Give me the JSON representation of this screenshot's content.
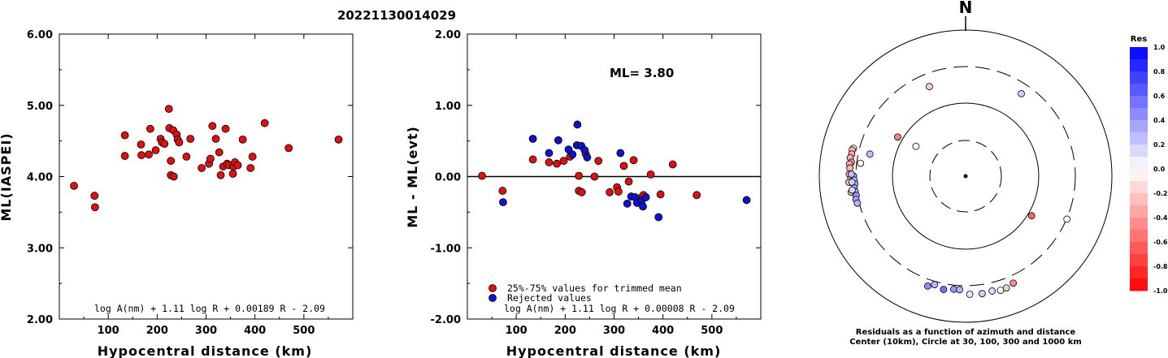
{
  "title": "20221130014029",
  "chart_data": [
    {
      "type": "scatter",
      "xlabel": "Hypocentral distance (km)",
      "ylabel": "ML(IASPEI)",
      "xlim": [
        0,
        600
      ],
      "ylim": [
        2.0,
        6.0
      ],
      "xticks": [
        "100",
        "200",
        "300",
        "400",
        "500"
      ],
      "yticks": [
        "2.00",
        "3.00",
        "4.00",
        "5.00",
        "6.00"
      ],
      "formula": "log A(nm) + 1.11 log R + 0.00189 R - 2.09",
      "point_color": "#dd1111",
      "points": [
        [
          30,
          3.87
        ],
        [
          72,
          3.73
        ],
        [
          73,
          3.57
        ],
        [
          134,
          4.58
        ],
        [
          134,
          4.29
        ],
        [
          167,
          4.45
        ],
        [
          168,
          4.3
        ],
        [
          183,
          4.31
        ],
        [
          186,
          4.67
        ],
        [
          197,
          4.37
        ],
        [
          207,
          4.53
        ],
        [
          210,
          4.48
        ],
        [
          215,
          4.46
        ],
        [
          224,
          4.95
        ],
        [
          225,
          4.68
        ],
        [
          228,
          4.22
        ],
        [
          228,
          4.02
        ],
        [
          233,
          4.65
        ],
        [
          234,
          4.0
        ],
        [
          240,
          4.59
        ],
        [
          242,
          4.52
        ],
        [
          245,
          4.48
        ],
        [
          260,
          4.28
        ],
        [
          268,
          4.53
        ],
        [
          291,
          4.12
        ],
        [
          306,
          4.18
        ],
        [
          309,
          4.25
        ],
        [
          313,
          4.71
        ],
        [
          320,
          4.53
        ],
        [
          327,
          4.34
        ],
        [
          330,
          4.02
        ],
        [
          335,
          4.14
        ],
        [
          340,
          4.67
        ],
        [
          343,
          4.18
        ],
        [
          347,
          4.16
        ],
        [
          355,
          4.04
        ],
        [
          356,
          4.14
        ],
        [
          359,
          4.2
        ],
        [
          365,
          4.16
        ],
        [
          375,
          4.52
        ],
        [
          391,
          4.12
        ],
        [
          395,
          4.28
        ],
        [
          420,
          4.75
        ],
        [
          469,
          4.4
        ],
        [
          571,
          4.52
        ]
      ]
    },
    {
      "type": "scatter",
      "xlabel": "Hypocentral distance (km)",
      "ylabel": "ML - ML(evt)",
      "xlim": [
        0,
        600
      ],
      "ylim": [
        -2.0,
        2.0
      ],
      "xticks": [
        "100",
        "200",
        "300",
        "400",
        "500"
      ],
      "yticks": [
        "-2.00",
        "-1.00",
        "0.00",
        "1.00",
        "2.00"
      ],
      "annotation": "ML= 3.80",
      "formula": "log A(nm) + 1.11 log R + 0.00008 R - 2.09",
      "legend": [
        {
          "label": "25%-75% values for trimmed mean",
          "color": "#dd1111"
        },
        {
          "label": "Rejected values",
          "color": "#1111cc"
        }
      ],
      "series": [
        {
          "name": "25%-75% values for trimmed mean",
          "color": "#dd1111",
          "points": [
            [
              30,
              0.01
            ],
            [
              72,
              -0.2
            ],
            [
              134,
              0.24
            ],
            [
              167,
              0.2
            ],
            [
              183,
              0.18
            ],
            [
              197,
              0.22
            ],
            [
              210,
              0.28
            ],
            [
              228,
              0.01
            ],
            [
              228,
              -0.2
            ],
            [
              234,
              -0.22
            ],
            [
              242,
              0.32
            ],
            [
              260,
              0.0
            ],
            [
              268,
              0.22
            ],
            [
              291,
              -0.22
            ],
            [
              306,
              -0.15
            ],
            [
              309,
              -0.21
            ],
            [
              320,
              0.15
            ],
            [
              330,
              -0.07
            ],
            [
              340,
              0.23
            ],
            [
              355,
              -0.3
            ],
            [
              360,
              -0.26
            ],
            [
              375,
              0.03
            ],
            [
              395,
              -0.25
            ],
            [
              420,
              0.17
            ],
            [
              469,
              -0.26
            ]
          ]
        },
        {
          "name": "Rejected values",
          "color": "#1111cc",
          "points": [
            [
              73,
              -0.36
            ],
            [
              134,
              0.53
            ],
            [
              167,
              0.33
            ],
            [
              186,
              0.51
            ],
            [
              207,
              0.38
            ],
            [
              215,
              0.31
            ],
            [
              224,
              0.44
            ],
            [
              225,
              0.73
            ],
            [
              233,
              0.43
            ],
            [
              240,
              0.37
            ],
            [
              245,
              0.27
            ],
            [
              313,
              0.33
            ],
            [
              327,
              -0.38
            ],
            [
              335,
              -0.28
            ],
            [
              343,
              -0.29
            ],
            [
              347,
              -0.37
            ],
            [
              356,
              -0.34
            ],
            [
              359,
              -0.42
            ],
            [
              365,
              -0.29
            ],
            [
              391,
              -0.57
            ],
            [
              571,
              -0.33
            ]
          ]
        }
      ]
    },
    {
      "type": "scatter",
      "subtype": "polar-azimuth-distance",
      "north_label": "N",
      "caption_line1": "Residuals as a function of azimuth and distance",
      "caption_line2": "Center (10km), Circle at 30, 100, 300 and 1000 km",
      "colorbar_title": "Res",
      "colorbar_labels": [
        "1.0",
        "0.8",
        "0.6",
        "0.4",
        "0.2",
        "0.0",
        "-0.2",
        "-0.4",
        "-0.6",
        "-0.8",
        "-1.0"
      ],
      "rings_km": [
        30,
        100,
        300,
        1000
      ],
      "points": [
        {
          "az": 284,
          "dist": 380,
          "res": 0.0
        },
        {
          "az": 277,
          "dist": 280,
          "res": 0.0
        },
        {
          "az": 283,
          "dist": 220,
          "res": 0.25
        },
        {
          "az": 338,
          "dist": 210,
          "res": -0.2
        },
        {
          "az": 34,
          "dist": 230,
          "res": 0.2
        },
        {
          "az": 300,
          "dist": 118,
          "res": -0.5
        },
        {
          "az": 301,
          "dist": 62,
          "res": 0.0
        },
        {
          "az": 121,
          "dist": 113,
          "res": -0.6
        },
        {
          "az": 113,
          "dist": 320,
          "res": 0.0
        },
        {
          "az": 283,
          "dist": 390,
          "res": -0.3
        },
        {
          "az": 281,
          "dist": 385,
          "res": -0.35
        },
        {
          "az": 279,
          "dist": 395,
          "res": -0.3
        },
        {
          "az": 277,
          "dist": 375,
          "res": -0.4
        },
        {
          "az": 276,
          "dist": 395,
          "res": -0.35
        },
        {
          "az": 274,
          "dist": 385,
          "res": -0.3
        },
        {
          "az": 271,
          "dist": 390,
          "res": -0.25
        },
        {
          "az": 269,
          "dist": 370,
          "res": -0.35
        },
        {
          "az": 267,
          "dist": 395,
          "res": -0.3
        },
        {
          "az": 262,
          "dist": 380,
          "res": -0.25
        },
        {
          "az": 270,
          "dist": 340,
          "res": 0.3
        },
        {
          "az": 268,
          "dist": 335,
          "res": 0.25
        },
        {
          "az": 266,
          "dist": 330,
          "res": 0.3
        },
        {
          "az": 264,
          "dist": 340,
          "res": 0.35
        },
        {
          "az": 262,
          "dist": 335,
          "res": 0.3
        },
        {
          "az": 260,
          "dist": 330,
          "res": 0.4
        },
        {
          "az": 258,
          "dist": 340,
          "res": 0.35
        },
        {
          "az": 256,
          "dist": 335,
          "res": 0.3
        },
        {
          "az": 267,
          "dist": 360,
          "res": 0.2
        },
        {
          "az": 263,
          "dist": 365,
          "res": 0.15
        },
        {
          "az": 271,
          "dist": 365,
          "res": 0.25
        },
        {
          "az": 199,
          "dist": 390,
          "res": 0.45
        },
        {
          "az": 191,
          "dist": 380,
          "res": 0.55
        },
        {
          "az": 186,
          "dist": 360,
          "res": 0.4
        },
        {
          "az": 196,
          "dist": 350,
          "res": 0.3
        },
        {
          "az": 183,
          "dist": 360,
          "res": 0.3
        },
        {
          "az": 178,
          "dist": 415,
          "res": 0.1
        },
        {
          "az": 172,
          "dist": 420,
          "res": 0.2
        },
        {
          "az": 167,
          "dist": 410,
          "res": 0.15
        },
        {
          "az": 163,
          "dist": 430,
          "res": 0.0
        },
        {
          "az": 160,
          "dist": 425,
          "res": -0.2
        },
        {
          "az": 156,
          "dist": 400,
          "res": -0.45
        }
      ]
    }
  ]
}
